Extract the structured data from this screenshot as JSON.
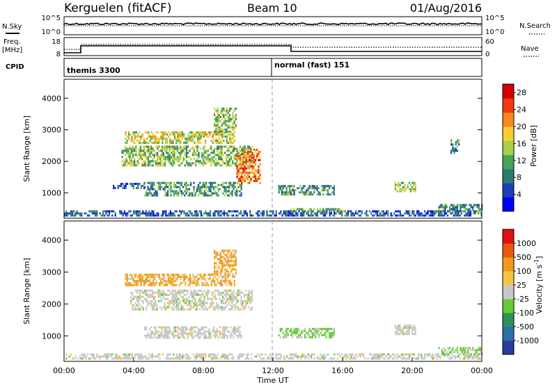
{
  "header": {
    "station": "Kerguelen (fitACF)",
    "beam": "Beam 10",
    "date": "01/Aug/2016"
  },
  "panels": {
    "nsky": {
      "label": "N.Sky",
      "right_label": "N.Search",
      "ticks_left": [
        "10^5",
        "10^0"
      ],
      "ticks_right": [
        "10^5",
        "10^0"
      ]
    },
    "freq": {
      "label_line1": "Freq.",
      "label_line2": "[MHz]",
      "ticks_left": [
        "18",
        "8"
      ],
      "right_label": "Nave",
      "ticks_right": [
        "60",
        "0"
      ]
    },
    "cpid": {
      "label": "CPID",
      "modes": [
        "themis 3300",
        "normal (fast) 151"
      ]
    }
  },
  "chart_data": [
    {
      "type": "heatmap",
      "title": "",
      "xlabel": "Time UT",
      "ylabel": "Slant Range [km]",
      "x_ticks": [
        "00:00",
        "04:00",
        "08:00",
        "12:00",
        "16:00",
        "20:00",
        "00:00"
      ],
      "xlim_hours": [
        0,
        24
      ],
      "y_ticks": [
        1000,
        2000,
        3000,
        4000
      ],
      "ylim": [
        200,
        4600
      ],
      "colorbar": {
        "label": "Power [dB]",
        "ticks": [
          4,
          8,
          12,
          16,
          20,
          24,
          28
        ],
        "range": [
          0,
          30
        ],
        "colors": [
          "#0000ff",
          "#1b3fb4",
          "#2f7a70",
          "#46a35a",
          "#a9d04a",
          "#f7cc32",
          "#f78a1d",
          "#ee3a12",
          "#d50000"
        ]
      },
      "regions": [
        {
          "t": [
            0.0,
            24.0
          ],
          "r": [
            300,
            450
          ],
          "level": 0.22
        },
        {
          "t": [
            2.8,
            4.6
          ],
          "r": [
            1150,
            1320
          ],
          "level": 0.2
        },
        {
          "t": [
            3.5,
            9.8
          ],
          "r": [
            2600,
            2950
          ],
          "level": 0.55
        },
        {
          "t": [
            3.3,
            10.8
          ],
          "r": [
            1850,
            2500
          ],
          "level": 0.45
        },
        {
          "t": [
            4.6,
            10.2
          ],
          "r": [
            900,
            1350
          ],
          "level": 0.35
        },
        {
          "t": [
            8.6,
            9.9
          ],
          "r": [
            2950,
            3700
          ],
          "level": 0.45
        },
        {
          "t": [
            9.9,
            11.3
          ],
          "r": [
            1300,
            2400
          ],
          "level": 0.75
        },
        {
          "t": [
            12.3,
            15.5
          ],
          "r": [
            950,
            1250
          ],
          "level": 0.35
        },
        {
          "t": [
            13.0,
            16.0
          ],
          "r": [
            400,
            520
          ],
          "level": 0.45
        },
        {
          "t": [
            19.0,
            20.2
          ],
          "r": [
            1050,
            1350
          ],
          "level": 0.5
        },
        {
          "t": [
            21.5,
            24.0
          ],
          "r": [
            450,
            650
          ],
          "level": 0.3
        },
        {
          "t": [
            22.2,
            22.7
          ],
          "r": [
            2250,
            2700
          ],
          "level": 0.3
        }
      ]
    },
    {
      "type": "heatmap",
      "title": "",
      "xlabel": "Time UT",
      "ylabel": "Slant Range [km]",
      "x_ticks": [
        "00:00",
        "04:00",
        "08:00",
        "12:00",
        "16:00",
        "20:00",
        "00:00"
      ],
      "xlim_hours": [
        0,
        24
      ],
      "y_ticks": [
        1000,
        2000,
        3000,
        4000
      ],
      "ylim": [
        200,
        4600
      ],
      "colorbar": {
        "label": "Velocity [m s^-1]",
        "ticks": [
          1000,
          500,
          100,
          25,
          -25,
          -100,
          -500,
          -1000
        ],
        "colors": [
          "#2a3c9e",
          "#2a6fa8",
          "#2f8f5a",
          "#66cc33",
          "#c8c8c8",
          "#f5c542",
          "#f09a1c",
          "#e8580e",
          "#e01010"
        ]
      },
      "regions": [
        {
          "t": [
            0.0,
            24.0
          ],
          "r": [
            300,
            450
          ],
          "class": "gray"
        },
        {
          "t": [
            3.5,
            9.8
          ],
          "r": [
            2600,
            2950
          ],
          "class": "orange"
        },
        {
          "t": [
            8.6,
            9.9
          ],
          "r": [
            2950,
            3700
          ],
          "class": "orange"
        },
        {
          "t": [
            3.8,
            10.8
          ],
          "r": [
            1850,
            2450
          ],
          "class": "gray"
        },
        {
          "t": [
            4.6,
            10.2
          ],
          "r": [
            950,
            1300
          ],
          "class": "gray"
        },
        {
          "t": [
            12.3,
            15.5
          ],
          "r": [
            950,
            1250
          ],
          "class": "green"
        },
        {
          "t": [
            19.0,
            20.2
          ],
          "r": [
            1050,
            1350
          ],
          "class": "gray"
        },
        {
          "t": [
            21.5,
            24.0
          ],
          "r": [
            450,
            650
          ],
          "class": "green"
        }
      ]
    }
  ],
  "legend_labels": {
    "nsky_right": "N.Search",
    "freq_right": "Nave"
  }
}
